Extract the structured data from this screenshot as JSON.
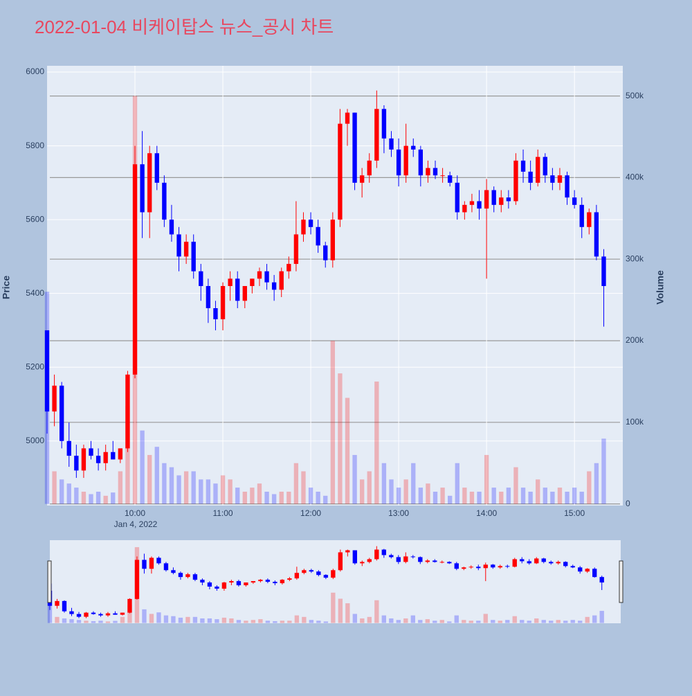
{
  "chart_data": {
    "type": "candlestick",
    "title": "2022-01-04 비케이탑스 뉴스_공시 차트",
    "y_title": "Price",
    "y2_title": "Volume",
    "date_label": "Jan 4, 2022",
    "increasing_color": "#ff0000",
    "decreasing_color": "#0000ff",
    "x": [
      "09:00",
      "09:05",
      "09:10",
      "09:15",
      "09:20",
      "09:25",
      "09:30",
      "09:35",
      "09:40",
      "09:45",
      "09:50",
      "09:55",
      "10:00",
      "10:05",
      "10:10",
      "10:15",
      "10:20",
      "10:25",
      "10:30",
      "10:35",
      "10:40",
      "10:45",
      "10:50",
      "10:55",
      "11:00",
      "11:05",
      "11:10",
      "11:15",
      "11:20",
      "11:25",
      "11:30",
      "11:35",
      "11:40",
      "11:45",
      "11:50",
      "11:55",
      "12:00",
      "12:05",
      "12:10",
      "12:15",
      "12:20",
      "12:25",
      "12:30",
      "12:35",
      "12:40",
      "12:45",
      "12:50",
      "12:55",
      "13:00",
      "13:05",
      "13:10",
      "13:15",
      "13:20",
      "13:25",
      "13:30",
      "13:35",
      "13:40",
      "13:45",
      "13:50",
      "13:55",
      "14:00",
      "14:05",
      "14:10",
      "14:15",
      "14:20",
      "14:25",
      "14:30",
      "14:35",
      "14:40",
      "14:45",
      "14:50",
      "14:55",
      "15:00",
      "15:05",
      "15:10",
      "15:15",
      "15:20"
    ],
    "open": [
      5300,
      5080,
      5150,
      5000,
      4960,
      4920,
      4980,
      4960,
      4940,
      4970,
      4950,
      4980,
      5180,
      5750,
      5620,
      5780,
      5700,
      5600,
      5560,
      5500,
      5540,
      5460,
      5420,
      5360,
      5330,
      5420,
      5440,
      5380,
      5420,
      5440,
      5460,
      5430,
      5410,
      5460,
      5480,
      5560,
      5600,
      5580,
      5530,
      5490,
      5600,
      5860,
      5890,
      5700,
      5720,
      5760,
      5900,
      5820,
      5790,
      5720,
      5800,
      5790,
      5720,
      5740,
      5720,
      5720,
      5700,
      5620,
      5640,
      5650,
      5630,
      5680,
      5640,
      5660,
      5650,
      5760,
      5730,
      5700,
      5770,
      5720,
      5700,
      5720,
      5660,
      5640,
      5580,
      5620,
      5500
    ],
    "high": [
      5300,
      5180,
      5160,
      5050,
      4990,
      4990,
      5000,
      4980,
      4990,
      5000,
      4980,
      5190,
      5800,
      5840,
      5800,
      5800,
      5720,
      5640,
      5580,
      5560,
      5560,
      5480,
      5440,
      5380,
      5430,
      5460,
      5460,
      5420,
      5440,
      5470,
      5480,
      5450,
      5470,
      5500,
      5650,
      5620,
      5620,
      5600,
      5540,
      5620,
      5900,
      5900,
      5890,
      5740,
      5780,
      5950,
      5910,
      5840,
      5820,
      5860,
      5820,
      5800,
      5760,
      5760,
      5740,
      5730,
      5720,
      5650,
      5670,
      5680,
      5710,
      5690,
      5680,
      5680,
      5780,
      5790,
      5760,
      5790,
      5780,
      5740,
      5740,
      5730,
      5680,
      5660,
      5630,
      5640,
      5520
    ],
    "low": [
      5020,
      5040,
      4980,
      4930,
      4900,
      4900,
      4950,
      4920,
      4920,
      4950,
      4940,
      4970,
      5170,
      5550,
      5550,
      5680,
      5580,
      5540,
      5460,
      5480,
      5440,
      5380,
      5320,
      5300,
      5300,
      5380,
      5360,
      5360,
      5400,
      5420,
      5410,
      5380,
      5390,
      5440,
      5460,
      5540,
      5560,
      5510,
      5470,
      5470,
      5580,
      5800,
      5680,
      5660,
      5700,
      5740,
      5780,
      5770,
      5690,
      5700,
      5770,
      5690,
      5700,
      5710,
      5700,
      5690,
      5600,
      5600,
      5620,
      5600,
      5440,
      5620,
      5620,
      5630,
      5640,
      5700,
      5680,
      5690,
      5700,
      5680,
      5680,
      5640,
      5630,
      5550,
      5560,
      5490,
      5310
    ],
    "close": [
      5080,
      5150,
      5000,
      4960,
      4920,
      4980,
      4960,
      4940,
      4970,
      4950,
      4980,
      5180,
      5750,
      5620,
      5780,
      5700,
      5600,
      5560,
      5500,
      5540,
      5460,
      5420,
      5360,
      5330,
      5420,
      5440,
      5380,
      5420,
      5440,
      5460,
      5430,
      5410,
      5460,
      5480,
      5560,
      5600,
      5580,
      5530,
      5490,
      5600,
      5860,
      5890,
      5700,
      5720,
      5760,
      5900,
      5820,
      5790,
      5720,
      5800,
      5790,
      5720,
      5740,
      5720,
      5720,
      5700,
      5620,
      5640,
      5650,
      5630,
      5680,
      5640,
      5660,
      5650,
      5760,
      5730,
      5700,
      5770,
      5720,
      5700,
      5720,
      5660,
      5640,
      5580,
      5620,
      5500,
      5420
    ],
    "volume": [
      260000,
      40000,
      30000,
      25000,
      20000,
      15000,
      12000,
      15000,
      10000,
      14000,
      40000,
      120000,
      500000,
      90000,
      60000,
      70000,
      50000,
      45000,
      35000,
      40000,
      40000,
      30000,
      30000,
      25000,
      35000,
      30000,
      20000,
      15000,
      20000,
      25000,
      15000,
      12000,
      15000,
      15000,
      50000,
      40000,
      20000,
      15000,
      10000,
      200000,
      160000,
      130000,
      60000,
      30000,
      40000,
      150000,
      50000,
      30000,
      20000,
      30000,
      50000,
      20000,
      25000,
      15000,
      20000,
      10000,
      50000,
      20000,
      15000,
      15000,
      60000,
      20000,
      15000,
      20000,
      45000,
      20000,
      15000,
      30000,
      20000,
      15000,
      20000,
      15000,
      20000,
      15000,
      40000,
      50000,
      80000
    ],
    "xlim": [
      "09:00",
      "15:33"
    ],
    "xticks": [
      "10:00",
      "11:00",
      "12:00",
      "13:00",
      "14:00",
      "15:00"
    ],
    "ylim": [
      4825,
      6017
    ],
    "yticks": [
      5000,
      5200,
      5400,
      5600,
      5800,
      6000
    ],
    "y2lim": [
      -2000,
      537000
    ],
    "y2ticks": [
      {
        "value": 0,
        "label": "0"
      },
      {
        "value": 100000,
        "label": "100k"
      },
      {
        "value": 200000,
        "label": "200k"
      },
      {
        "value": 300000,
        "label": "300k"
      },
      {
        "value": 400000,
        "label": "400k"
      },
      {
        "value": 500000,
        "label": "500k"
      }
    ],
    "grid": true,
    "range_slider": true
  }
}
